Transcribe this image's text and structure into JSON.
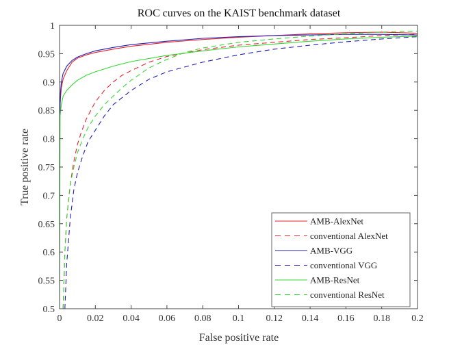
{
  "chart_data": {
    "type": "line",
    "title": "ROC curves on the KAIST benchmark dataset",
    "xlabel": "False positive rate",
    "ylabel": "True positive rate",
    "xlim": [
      0,
      0.2
    ],
    "ylim": [
      0.5,
      1
    ],
    "xticks": [
      "0",
      "0.02",
      "0.04",
      "0.06",
      "0.08",
      "0.1",
      "0.12",
      "0.14",
      "0.16",
      "0.18",
      "0.2"
    ],
    "xtick_values": [
      0,
      0.02,
      0.04,
      0.06,
      0.08,
      0.1,
      0.12,
      0.14,
      0.16,
      0.18,
      0.2
    ],
    "yticks": [
      "0.5",
      "0.55",
      "0.6",
      "0.65",
      "0.7",
      "0.75",
      "0.8",
      "0.85",
      "0.9",
      "0.95",
      "1"
    ],
    "ytick_values": [
      0.5,
      0.55,
      0.6,
      0.65,
      0.7,
      0.75,
      0.8,
      0.85,
      0.9,
      0.95,
      1
    ],
    "grid": false,
    "legend_position": "bottom-right",
    "series": [
      {
        "name": "AMB-AlexNet",
        "color": "#e8202a",
        "dash": "solid",
        "x": [
          0,
          0.0005,
          0.001,
          0.002,
          0.004,
          0.007,
          0.01,
          0.015,
          0.02,
          0.03,
          0.04,
          0.06,
          0.08,
          0.1,
          0.12,
          0.14,
          0.16,
          0.18,
          0.2
        ],
        "y": [
          0.84,
          0.87,
          0.89,
          0.905,
          0.92,
          0.935,
          0.942,
          0.948,
          0.952,
          0.958,
          0.963,
          0.97,
          0.975,
          0.979,
          0.982,
          0.985,
          0.987,
          0.988,
          0.986
        ]
      },
      {
        "name": "conventional AlexNet",
        "color": "#e8202a",
        "dash": "dashed",
        "x": [
          0.002,
          0.003,
          0.004,
          0.006,
          0.008,
          0.01,
          0.012,
          0.015,
          0.02,
          0.025,
          0.03,
          0.035,
          0.04,
          0.05,
          0.06,
          0.08,
          0.1,
          0.12,
          0.14,
          0.16,
          0.18,
          0.2
        ],
        "y": [
          0.5,
          0.6,
          0.66,
          0.72,
          0.76,
          0.79,
          0.81,
          0.835,
          0.865,
          0.885,
          0.9,
          0.912,
          0.92,
          0.935,
          0.945,
          0.957,
          0.965,
          0.97,
          0.975,
          0.978,
          0.982,
          0.984
        ]
      },
      {
        "name": "AMB-VGG",
        "color": "#1f1fb4",
        "dash": "solid",
        "x": [
          0,
          0.0005,
          0.001,
          0.002,
          0.004,
          0.007,
          0.01,
          0.015,
          0.02,
          0.03,
          0.04,
          0.06,
          0.08,
          0.1,
          0.12,
          0.14,
          0.16,
          0.18,
          0.2
        ],
        "y": [
          0.82,
          0.88,
          0.9,
          0.915,
          0.928,
          0.938,
          0.944,
          0.95,
          0.955,
          0.961,
          0.966,
          0.972,
          0.977,
          0.98,
          0.982,
          0.983,
          0.984,
          0.984,
          0.983
        ]
      },
      {
        "name": "conventional VGG",
        "color": "#1f1fb4",
        "dash": "dashed",
        "x": [
          0.003,
          0.004,
          0.006,
          0.008,
          0.01,
          0.013,
          0.016,
          0.02,
          0.025,
          0.03,
          0.04,
          0.05,
          0.06,
          0.08,
          0.1,
          0.12,
          0.14,
          0.16,
          0.18,
          0.2
        ],
        "y": [
          0.5,
          0.58,
          0.66,
          0.71,
          0.74,
          0.77,
          0.795,
          0.815,
          0.84,
          0.86,
          0.885,
          0.905,
          0.918,
          0.935,
          0.948,
          0.958,
          0.965,
          0.971,
          0.976,
          0.98
        ]
      },
      {
        "name": "AMB-ResNet",
        "color": "#33d633",
        "dash": "solid",
        "x": [
          0,
          0.0003,
          0.001,
          0.002,
          0.004,
          0.007,
          0.01,
          0.015,
          0.02,
          0.03,
          0.04,
          0.06,
          0.08,
          0.1,
          0.12,
          0.14,
          0.16,
          0.18,
          0.2
        ],
        "y": [
          0.5,
          0.84,
          0.86,
          0.875,
          0.885,
          0.895,
          0.903,
          0.912,
          0.918,
          0.928,
          0.936,
          0.947,
          0.955,
          0.962,
          0.967,
          0.972,
          0.976,
          0.979,
          0.981
        ]
      },
      {
        "name": "conventional ResNet",
        "color": "#33d633",
        "dash": "dashed",
        "x": [
          0.002,
          0.003,
          0.004,
          0.006,
          0.008,
          0.01,
          0.013,
          0.016,
          0.02,
          0.025,
          0.03,
          0.035,
          0.04,
          0.05,
          0.06,
          0.07,
          0.08,
          0.1,
          0.12,
          0.14,
          0.16,
          0.18,
          0.2
        ],
        "y": [
          0.5,
          0.6,
          0.66,
          0.72,
          0.75,
          0.775,
          0.8,
          0.82,
          0.84,
          0.86,
          0.875,
          0.89,
          0.903,
          0.925,
          0.94,
          0.952,
          0.96,
          0.97,
          0.976,
          0.981,
          0.985,
          0.988,
          0.99
        ]
      }
    ]
  }
}
